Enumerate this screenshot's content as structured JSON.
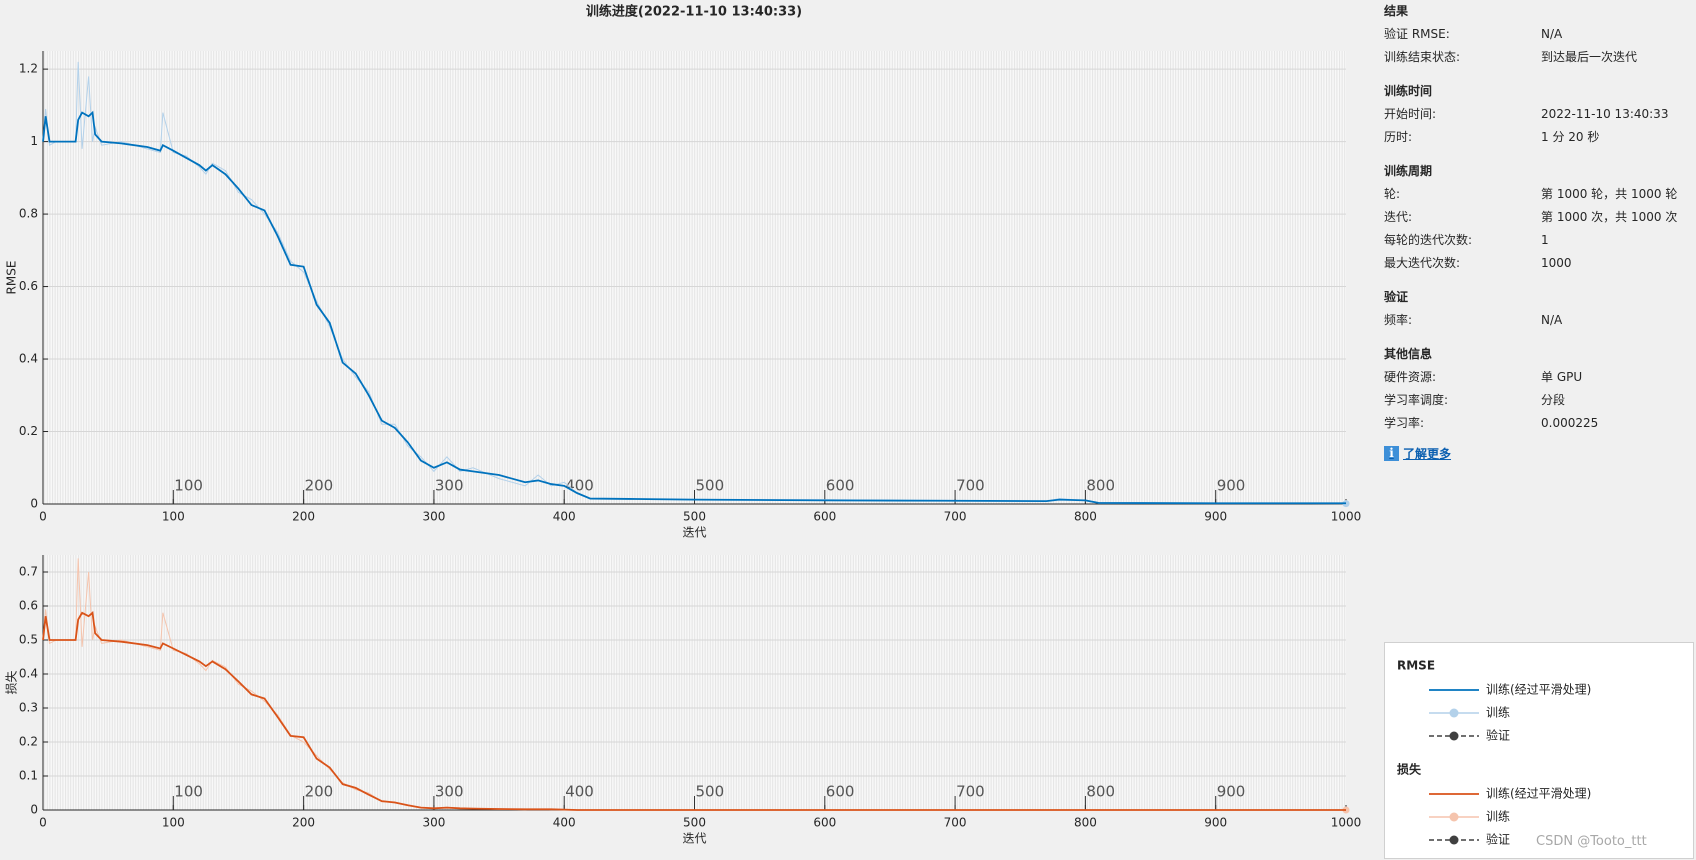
{
  "title": "训练进度(2022-11-10 13:40:33)",
  "chart_data": [
    {
      "type": "line",
      "ylabel": "RMSE",
      "xlabel": "迭代",
      "xlim": [
        0,
        1000
      ],
      "xticks": [
        0,
        100,
        200,
        300,
        400,
        500,
        600,
        700,
        800,
        900,
        1000
      ],
      "ylim": [
        0,
        1.25
      ],
      "yticks": [
        0,
        0.2,
        0.4,
        0.6,
        0.8,
        1,
        1.2
      ],
      "grid": true,
      "epoch_labels": [
        100,
        200,
        300,
        400,
        500,
        600,
        700,
        800,
        900
      ],
      "x": [
        0,
        2,
        5,
        10,
        25,
        27,
        30,
        35,
        38,
        40,
        45,
        60,
        80,
        90,
        92,
        100,
        110,
        120,
        125,
        130,
        140,
        150,
        160,
        170,
        180,
        190,
        200,
        210,
        220,
        230,
        240,
        250,
        260,
        270,
        280,
        290,
        300,
        310,
        320,
        330,
        350,
        370,
        380,
        390,
        400,
        410,
        420,
        450,
        500,
        600,
        700,
        770,
        780,
        800,
        810,
        900,
        1000
      ],
      "series": [
        {
          "name": "训练(经过平滑处理)",
          "color": "#0072bd",
          "values": [
            1.0,
            1.07,
            1.0,
            1.0,
            1.0,
            1.06,
            1.08,
            1.07,
            1.08,
            1.02,
            1.0,
            0.995,
            0.985,
            0.975,
            0.99,
            0.975,
            0.955,
            0.935,
            0.92,
            0.935,
            0.91,
            0.87,
            0.825,
            0.81,
            0.74,
            0.66,
            0.655,
            0.55,
            0.5,
            0.39,
            0.36,
            0.3,
            0.23,
            0.21,
            0.17,
            0.12,
            0.1,
            0.115,
            0.095,
            0.09,
            0.08,
            0.06,
            0.065,
            0.055,
            0.05,
            0.03,
            0.015,
            0.014,
            0.012,
            0.01,
            0.009,
            0.008,
            0.012,
            0.01,
            0.003,
            0.002,
            0.002
          ]
        },
        {
          "name": "训练",
          "color": "#b3d1ea",
          "values": [
            1.0,
            1.09,
            0.99,
            1.0,
            1.0,
            1.22,
            0.98,
            1.18,
            1.0,
            1.04,
            0.99,
            1.0,
            0.98,
            0.97,
            1.08,
            0.97,
            0.96,
            0.93,
            0.91,
            0.94,
            0.92,
            0.86,
            0.84,
            0.8,
            0.75,
            0.67,
            0.64,
            0.56,
            0.49,
            0.4,
            0.35,
            0.31,
            0.22,
            0.22,
            0.16,
            0.13,
            0.09,
            0.13,
            0.09,
            0.1,
            0.07,
            0.05,
            0.08,
            0.05,
            0.06,
            0.03,
            0.014,
            0.015,
            0.011,
            0.012,
            0.008,
            0.007,
            0.015,
            0.009,
            0.002,
            0.002,
            0.001
          ]
        }
      ]
    },
    {
      "type": "line",
      "ylabel": "损失",
      "xlabel": "迭代",
      "xlim": [
        0,
        1000
      ],
      "xticks": [
        0,
        100,
        200,
        300,
        400,
        500,
        600,
        700,
        800,
        900,
        1000
      ],
      "ylim": [
        0,
        0.75
      ],
      "yticks": [
        0,
        0.1,
        0.2,
        0.3,
        0.4,
        0.5,
        0.6,
        0.7
      ],
      "grid": true,
      "epoch_labels": [
        100,
        200,
        300,
        400,
        500,
        600,
        700,
        800,
        900
      ],
      "x": [
        0,
        2,
        5,
        10,
        25,
        27,
        30,
        35,
        38,
        40,
        45,
        60,
        80,
        90,
        92,
        100,
        110,
        120,
        125,
        130,
        140,
        150,
        160,
        170,
        180,
        190,
        200,
        210,
        220,
        230,
        240,
        250,
        260,
        270,
        280,
        290,
        300,
        310,
        320,
        330,
        350,
        370,
        380,
        390,
        400,
        410,
        420,
        450,
        500,
        600,
        700,
        770,
        780,
        800,
        810,
        900,
        1000
      ],
      "series": [
        {
          "name": "训练(经过平滑处理)",
          "color": "#d95319",
          "values": [
            0.5,
            0.57,
            0.5,
            0.5,
            0.5,
            0.56,
            0.58,
            0.57,
            0.58,
            0.52,
            0.5,
            0.495,
            0.485,
            0.475,
            0.49,
            0.475,
            0.456,
            0.437,
            0.423,
            0.437,
            0.414,
            0.378,
            0.34,
            0.328,
            0.274,
            0.218,
            0.214,
            0.151,
            0.125,
            0.076,
            0.065,
            0.045,
            0.026,
            0.022,
            0.014,
            0.007,
            0.005,
            0.007,
            0.005,
            0.004,
            0.003,
            0.002,
            0.002,
            0.002,
            0.001,
            0,
            0,
            0,
            0,
            0,
            0,
            0,
            0,
            0,
            0,
            0,
            0
          ]
        },
        {
          "name": "训练",
          "color": "#f5c4ad",
          "values": [
            0.5,
            0.59,
            0.49,
            0.5,
            0.5,
            0.74,
            0.48,
            0.7,
            0.5,
            0.54,
            0.49,
            0.5,
            0.48,
            0.47,
            0.58,
            0.47,
            0.46,
            0.43,
            0.41,
            0.44,
            0.42,
            0.37,
            0.35,
            0.32,
            0.28,
            0.22,
            0.2,
            0.16,
            0.12,
            0.08,
            0.06,
            0.05,
            0.024,
            0.024,
            0.013,
            0.008,
            0.004,
            0.008,
            0.004,
            0.005,
            0.002,
            0.001,
            0.003,
            0.001,
            0.002,
            0,
            0,
            0,
            0,
            0,
            0,
            0,
            0,
            0,
            0,
            0,
            0
          ]
        }
      ]
    }
  ],
  "info": {
    "sections": [
      {
        "title": "结果",
        "rows": [
          [
            "验证 RMSE:",
            "N/A"
          ],
          [
            "训练结束状态:",
            "到达最后一次迭代"
          ]
        ]
      },
      {
        "title": "训练时间",
        "rows": [
          [
            "开始时间:",
            "2022-11-10 13:40:33"
          ],
          [
            "历时:",
            "1 分 20 秒"
          ]
        ]
      },
      {
        "title": "训练周期",
        "rows": [
          [
            "轮:",
            "第 1000 轮，共 1000 轮"
          ],
          [
            "迭代:",
            "第 1000 次，共 1000 次"
          ],
          [
            "每轮的迭代次数:",
            "1"
          ],
          [
            "最大迭代次数:",
            "1000"
          ]
        ]
      },
      {
        "title": "验证",
        "rows": [
          [
            "频率:",
            "N/A"
          ]
        ]
      },
      {
        "title": "其他信息",
        "rows": [
          [
            "硬件资源:",
            "单 GPU"
          ],
          [
            "学习率调度:",
            "分段"
          ],
          [
            "学习率:",
            "0.000225"
          ]
        ]
      }
    ],
    "link": "了解更多"
  },
  "legend": {
    "groups": [
      {
        "title": "RMSE",
        "validation": "验证"
      },
      {
        "title": "损失",
        "validation": "验证"
      }
    ]
  },
  "watermark": "CSDN @Tooto_ttt"
}
